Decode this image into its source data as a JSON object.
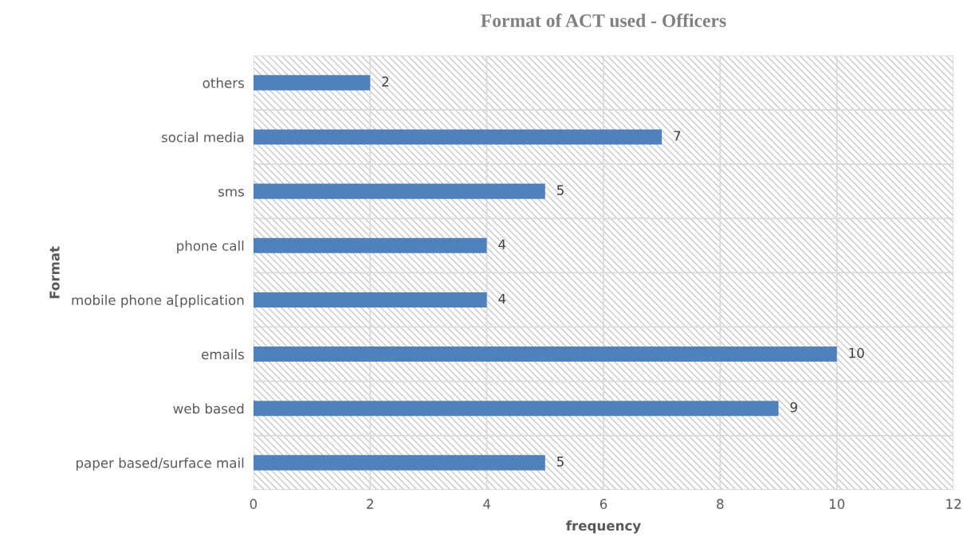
{
  "chart_data": {
    "type": "bar",
    "orientation": "horizontal",
    "title": "Format of ACT used - Officers",
    "xlabel": "frequency",
    "ylabel": "Format",
    "categories": [
      "others",
      "social media",
      "sms",
      "phone call",
      "mobile phone a[pplication",
      "emails",
      "web based",
      "paper based/surface mail"
    ],
    "values": [
      2,
      7,
      5,
      4,
      4,
      10,
      9,
      5
    ],
    "color": "#4f81bd",
    "xlim": [
      0,
      12
    ],
    "xticks": [
      0,
      2,
      4,
      6,
      8,
      10,
      12
    ],
    "grid": true,
    "data_labels": true
  }
}
